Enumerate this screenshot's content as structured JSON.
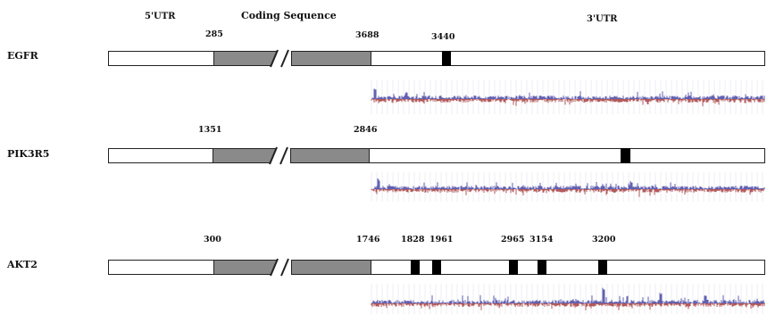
{
  "headers": {
    "utr5": "5'UTR",
    "coding": "Coding Sequence",
    "utr3": "3'UTR"
  },
  "genes": [
    {
      "name": "EGFR",
      "cds_start": "285",
      "cds_end": "3688",
      "sites": [
        "3440"
      ]
    },
    {
      "name": "PIK3R5",
      "cds_start": "1351",
      "cds_end": "2846",
      "sites": [
        ""
      ]
    },
    {
      "name": "AKT2",
      "cds_start": "300",
      "cds_end": "1746",
      "sites": [
        "1828",
        "1961",
        "2965",
        "3154",
        "3200"
      ]
    }
  ],
  "colors": {
    "coding_fill": "#8a8a8a",
    "site_fill": "#000000",
    "outline": "#222222",
    "track_positive": "#3a3aa0",
    "track_negative": "#a03030",
    "track_grid": "#c8c8d8"
  }
}
